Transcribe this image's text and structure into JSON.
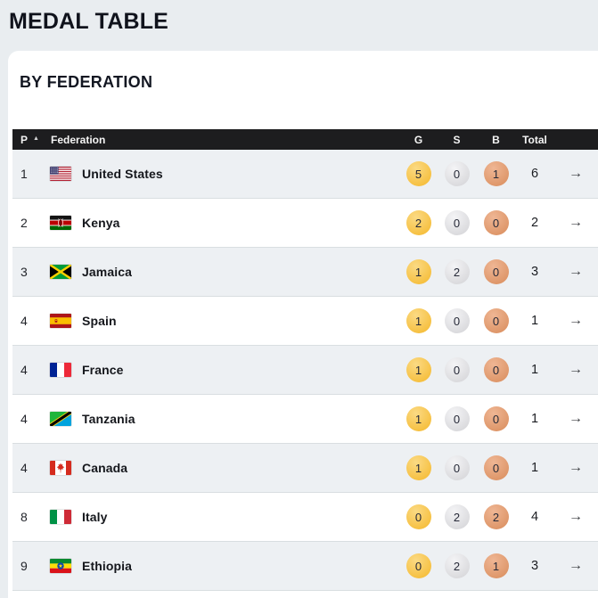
{
  "page": {
    "title": "MEDAL TABLE"
  },
  "card": {
    "heading": "BY FEDERATION"
  },
  "table": {
    "headers": {
      "position": "P",
      "federation": "Federation",
      "gold": "G",
      "silver": "S",
      "bronze": "B",
      "total": "Total"
    },
    "sort_icon": "▲",
    "arrow_icon": "→",
    "rows": [
      {
        "position": "1",
        "federation": "United States",
        "flag": "us",
        "gold": "5",
        "silver": "0",
        "bronze": "1",
        "total": "6"
      },
      {
        "position": "2",
        "federation": "Kenya",
        "flag": "ke",
        "gold": "2",
        "silver": "0",
        "bronze": "0",
        "total": "2"
      },
      {
        "position": "3",
        "federation": "Jamaica",
        "flag": "jm",
        "gold": "1",
        "silver": "2",
        "bronze": "0",
        "total": "3"
      },
      {
        "position": "4",
        "federation": "Spain",
        "flag": "es",
        "gold": "1",
        "silver": "0",
        "bronze": "0",
        "total": "1"
      },
      {
        "position": "4",
        "federation": "France",
        "flag": "fr",
        "gold": "1",
        "silver": "0",
        "bronze": "0",
        "total": "1"
      },
      {
        "position": "4",
        "federation": "Tanzania",
        "flag": "tz",
        "gold": "1",
        "silver": "0",
        "bronze": "0",
        "total": "1"
      },
      {
        "position": "4",
        "federation": "Canada",
        "flag": "ca",
        "gold": "1",
        "silver": "0",
        "bronze": "0",
        "total": "1"
      },
      {
        "position": "8",
        "federation": "Italy",
        "flag": "it",
        "gold": "0",
        "silver": "2",
        "bronze": "2",
        "total": "4"
      },
      {
        "position": "9",
        "federation": "Ethiopia",
        "flag": "et",
        "gold": "0",
        "silver": "2",
        "bronze": "1",
        "total": "3"
      }
    ]
  },
  "colors": {
    "page_bg": "#e9edf0",
    "card_bg": "#ffffff",
    "header_bg": "#1d1d1f",
    "row_alt": "#edf0f3",
    "gold_light": "#fbda84",
    "gold_base": "#f6bf3e",
    "silver_light": "#f4f4f6",
    "silver_base": "#d8d8db",
    "bronze_light": "#efb694",
    "bronze_base": "#dd9466"
  }
}
